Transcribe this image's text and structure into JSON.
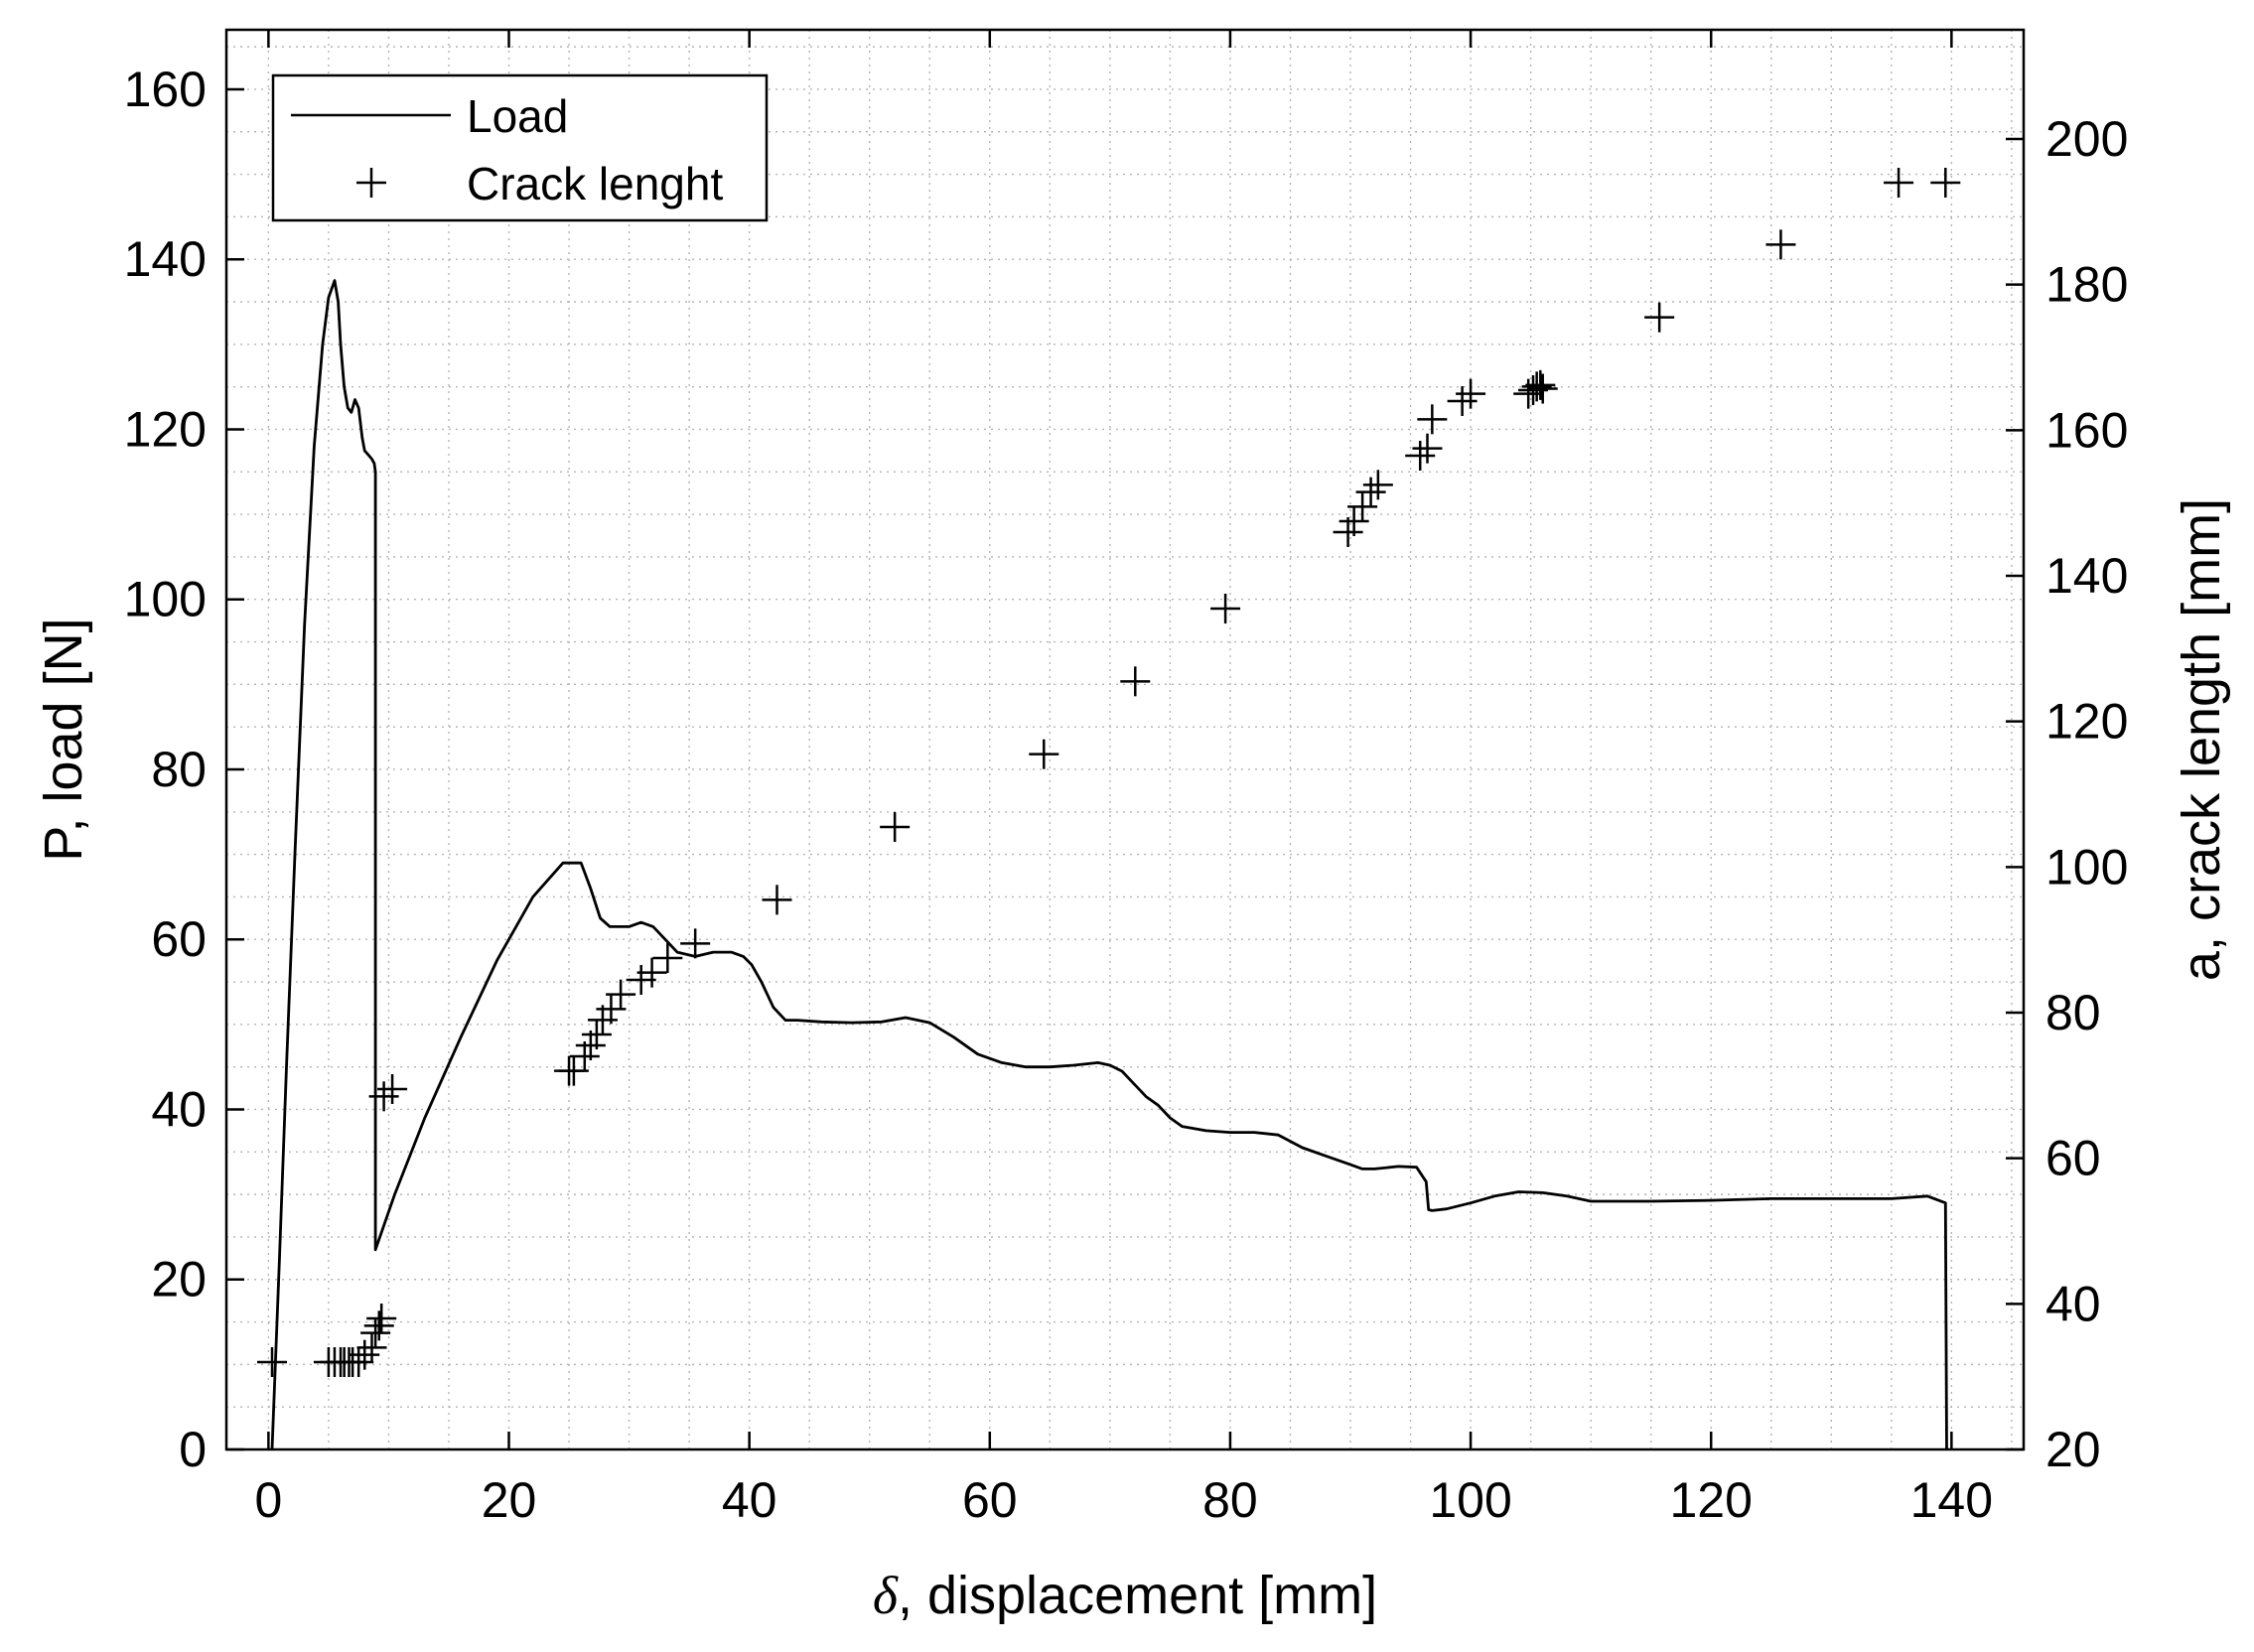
{
  "chart_data": {
    "type": "line",
    "title": "",
    "xlabel_symbol": "δ",
    "xlabel_rest": ", displacement [mm]",
    "ylabel": "P, load [N]",
    "y2label": "a, crack length [mm]",
    "xlim": [
      -3.5,
      146
    ],
    "ylim": [
      0,
      167
    ],
    "y2lim": [
      20,
      215
    ],
    "x_ticks": [
      0,
      20,
      40,
      60,
      80,
      100,
      120,
      140
    ],
    "y_ticks": [
      0,
      20,
      40,
      60,
      80,
      100,
      120,
      140,
      160
    ],
    "y2_ticks": [
      20,
      40,
      60,
      80,
      100,
      120,
      140,
      160,
      180,
      200
    ],
    "grid": "minor-dotted",
    "legend_position": "top-left",
    "series": [
      {
        "name": "Load",
        "axis": "left",
        "style": "line",
        "x": [
          0.3,
          0.9,
          1.5,
          2.2,
          3.0,
          3.8,
          4.5,
          5.0,
          5.5,
          5.8,
          6.0,
          6.3,
          6.6,
          6.9,
          7.2,
          7.5,
          7.8,
          8.0,
          8.3,
          8.6,
          8.8,
          8.9,
          8.9,
          10.5,
          13,
          16,
          19,
          22,
          24.5,
          26.0,
          26.8,
          27.6,
          28.4,
          29.2,
          30.0,
          31.0,
          32.0,
          33.0,
          34.0,
          35.5,
          37.0,
          38.5,
          39.5,
          40.2,
          41.0,
          42.0,
          43.0,
          44.0,
          46.0,
          48.5,
          51.0,
          53.0,
          55.0,
          57.0,
          59.0,
          61.0,
          63.0,
          65.0,
          67.0,
          69.0,
          70.0,
          71.0,
          72.0,
          73.0,
          74.0,
          75.0,
          76.0,
          78.0,
          80.0,
          82.0,
          84.0,
          86.0,
          88.0,
          90.0,
          91.0,
          92.0,
          94.0,
          95.5,
          96.3,
          96.5,
          96.8,
          98.0,
          100.0,
          102.0,
          104.0,
          106.0,
          108.0,
          110.0,
          115.0,
          120.0,
          125.0,
          130.0,
          135.0,
          138.0,
          139.5,
          139.6
        ],
        "y": [
          0,
          22,
          45,
          70,
          97,
          118,
          130,
          135.5,
          137.5,
          135,
          130,
          125,
          122.5,
          122,
          123.5,
          122.5,
          119,
          117.5,
          117,
          116.5,
          116,
          115,
          23.5,
          30,
          39,
          48.5,
          57.5,
          65,
          69,
          69,
          66,
          62.5,
          61.5,
          61.5,
          61.5,
          62,
          61.5,
          60,
          58.5,
          58,
          58.5,
          58.5,
          58,
          57,
          55,
          52,
          50.5,
          50.5,
          50.3,
          50.2,
          50.3,
          50.8,
          50.2,
          48.5,
          46.5,
          45.5,
          45,
          45,
          45.2,
          45.5,
          45.2,
          44.5,
          43,
          41.5,
          40.5,
          39,
          38,
          37.5,
          37.3,
          37.3,
          37,
          35.5,
          34.5,
          33.5,
          33,
          33,
          33.3,
          33.2,
          31.5,
          28.2,
          28.1,
          28.3,
          29,
          29.8,
          30.3,
          30.2,
          29.8,
          29.2,
          29.2,
          29.3,
          29.5,
          29.5,
          29.5,
          29.8,
          29.0,
          0
        ]
      },
      {
        "name": "Crack lenght",
        "axis": "right",
        "style": "plus",
        "x": [
          0.3,
          5.0,
          5.5,
          6.0,
          6.3,
          6.7,
          7.0,
          7.5,
          8.0,
          8.6,
          8.9,
          9.2,
          9.4,
          9.6,
          10.3,
          25.0,
          25.4,
          26.3,
          26.8,
          27.3,
          27.8,
          28.5,
          29.3,
          31.0,
          31.9,
          33.2,
          35.5,
          42.3,
          52.1,
          64.5,
          72.1,
          79.6,
          89.8,
          90.3,
          91.0,
          91.7,
          92.3,
          95.8,
          96.4,
          96.8,
          99.3,
          100.0,
          104.8,
          105.2,
          105.5,
          105.8,
          106.0,
          115.7,
          125.8,
          135.6,
          139.5
        ],
        "y": [
          32,
          32,
          32,
          32,
          32,
          32,
          32,
          32,
          33,
          34,
          36,
          37,
          38,
          68.5,
          69.5,
          72.0,
          72.0,
          74.0,
          75.5,
          77.0,
          79.0,
          80.5,
          82.5,
          84.5,
          85.5,
          87.5,
          89.5,
          95.5,
          105.5,
          115.5,
          125.5,
          135.5,
          146.0,
          147.5,
          149.5,
          151.5,
          152.5,
          156.5,
          157.5,
          161.5,
          164.0,
          165.0,
          165.0,
          165.5,
          166.0,
          166.2,
          165.7,
          175.5,
          185.5,
          194.0,
          194.0
        ]
      }
    ]
  }
}
